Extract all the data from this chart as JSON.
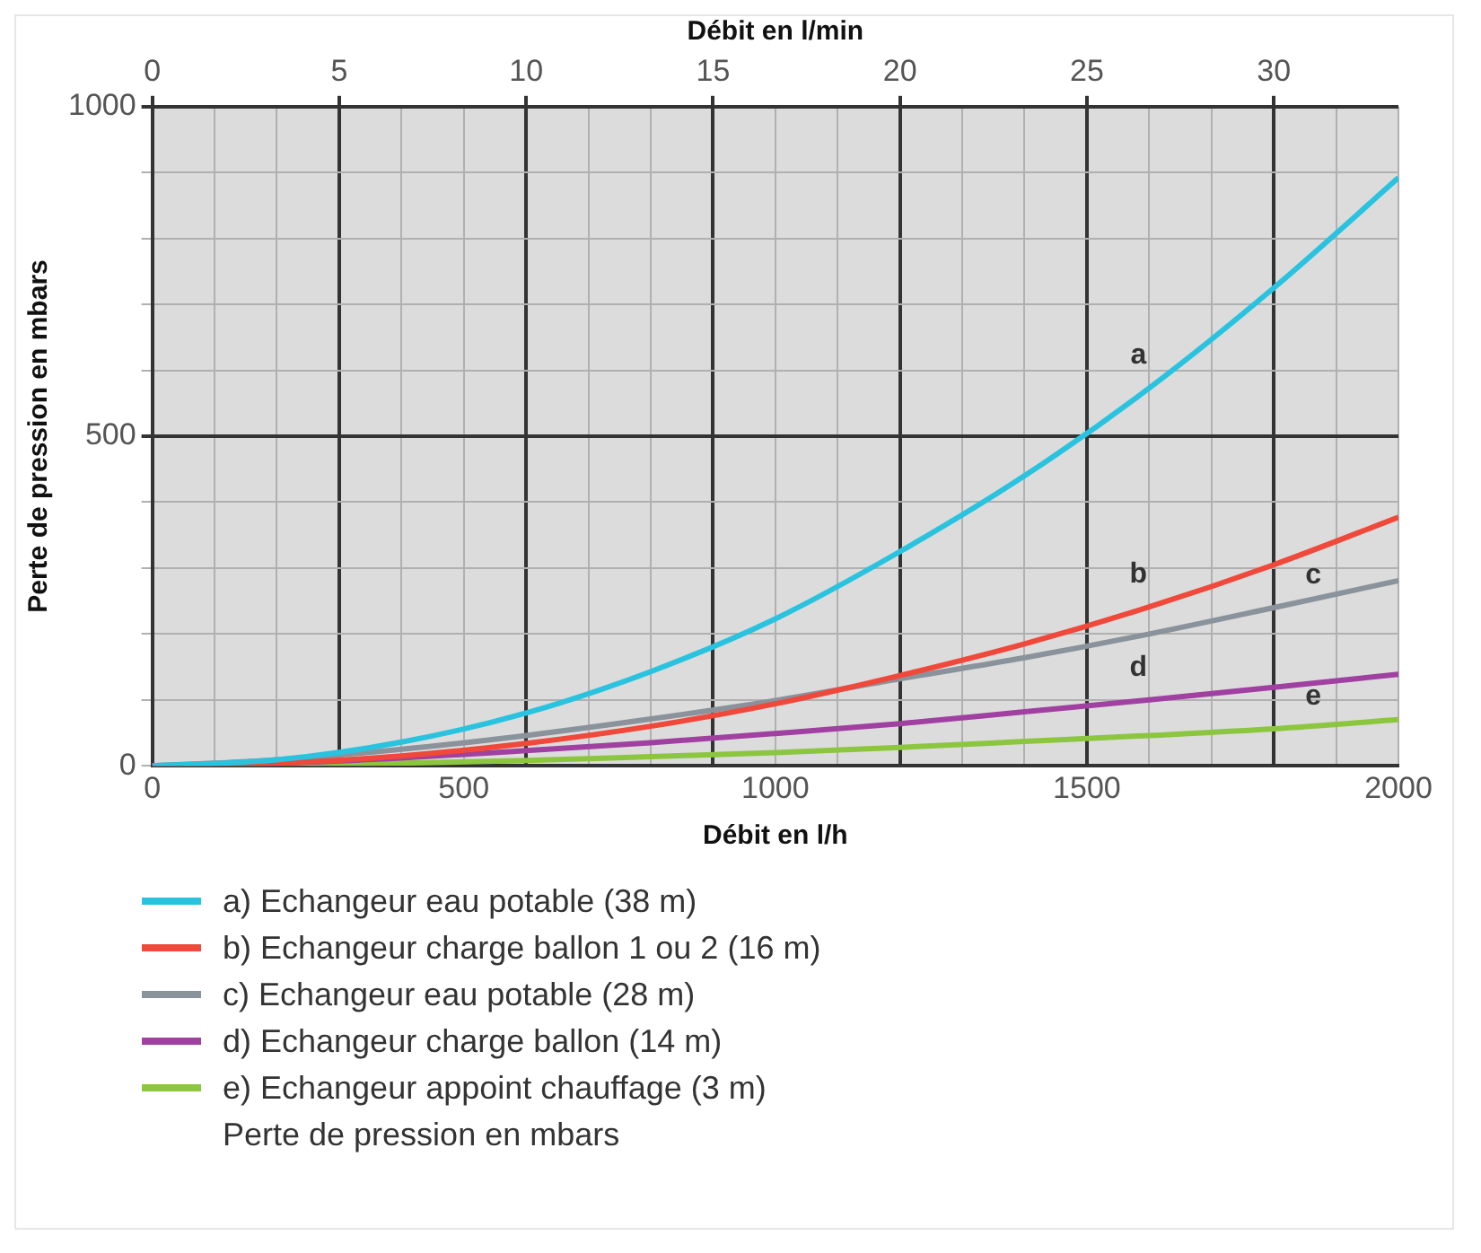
{
  "chart_data": {
    "type": "line",
    "xlabel": "Débit en l/h",
    "ylabel": "Perte de pression en mbars",
    "x2label": "Débit en l/min",
    "x": [
      0,
      200,
      400,
      600,
      800,
      1000,
      1200,
      1400,
      1600,
      1800,
      2000
    ],
    "series": [
      {
        "name": "a) Echangeur eau potable (38 m)",
        "color": "#29c3e0",
        "values": [
          0,
          9,
          36,
          80,
          143,
          223,
          325,
          440,
          573,
          725,
          892
        ]
      },
      {
        "name": "b) Echangeur charge ballon 1 ou 2 (16 m)",
        "color": "#f0483a",
        "values": [
          0,
          4,
          15,
          34,
          60,
          94,
          137,
          185,
          241,
          305,
          377
        ]
      },
      {
        "name": "c) Echangeur eau potable (28 m)",
        "color": "#8a939b",
        "values": [
          0,
          9,
          25,
          46,
          71,
          99,
          132,
          164,
          200,
          240,
          281
        ]
      },
      {
        "name": "d) Echangeur charge ballon (14 m)",
        "color": "#a040a0",
        "values": [
          0,
          4,
          12,
          23,
          35,
          49,
          64,
          82,
          100,
          119,
          139
        ]
      },
      {
        "name": "e) Echangeur appoint chauffage (3 m)",
        "color": "#8cc63f",
        "values": [
          0,
          1,
          4,
          8,
          14,
          20,
          28,
          37,
          46,
          56,
          70
        ]
      }
    ],
    "xlim": [
      0,
      2000
    ],
    "ylim": [
      0,
      1000
    ],
    "xticks": [
      0,
      {
        "value": 100,
        "label": null
      },
      {
        "value": 200,
        "label": null
      },
      {
        "value": 300,
        "label": null
      },
      {
        "value": 400,
        "label": null
      },
      500,
      {
        "value": 600,
        "label": null
      },
      {
        "value": 700,
        "label": null
      },
      {
        "value": 800,
        "label": null
      },
      {
        "value": 900,
        "label": null
      },
      1000,
      {
        "value": 1100,
        "label": null
      },
      {
        "value": 1200,
        "label": null
      },
      {
        "value": 1300,
        "label": null
      },
      {
        "value": 1400,
        "label": null
      },
      1500,
      {
        "value": 1600,
        "label": null
      },
      {
        "value": 1700,
        "label": null
      },
      {
        "value": 1800,
        "label": null
      },
      {
        "value": 1900,
        "label": null
      },
      2000
    ],
    "yticks": [
      0,
      {
        "value": 100,
        "label": null
      },
      {
        "value": 200,
        "label": null
      },
      {
        "value": 300,
        "label": null
      },
      {
        "value": 400,
        "label": null
      },
      500,
      {
        "value": 600,
        "label": null
      },
      {
        "value": 700,
        "label": null
      },
      {
        "value": 800,
        "label": null
      },
      {
        "value": 900,
        "label": null
      },
      1000
    ],
    "x2lim": [
      0,
      33.333
    ],
    "x2ticks": [
      0,
      5,
      10,
      15,
      20,
      25,
      30
    ],
    "grid": true,
    "legend": "bottom",
    "marker": "none",
    "line_style": "solid",
    "annotations": [
      "a",
      "b",
      "c",
      "d",
      "e",
      "Perte de pression en mbars"
    ]
  }
}
